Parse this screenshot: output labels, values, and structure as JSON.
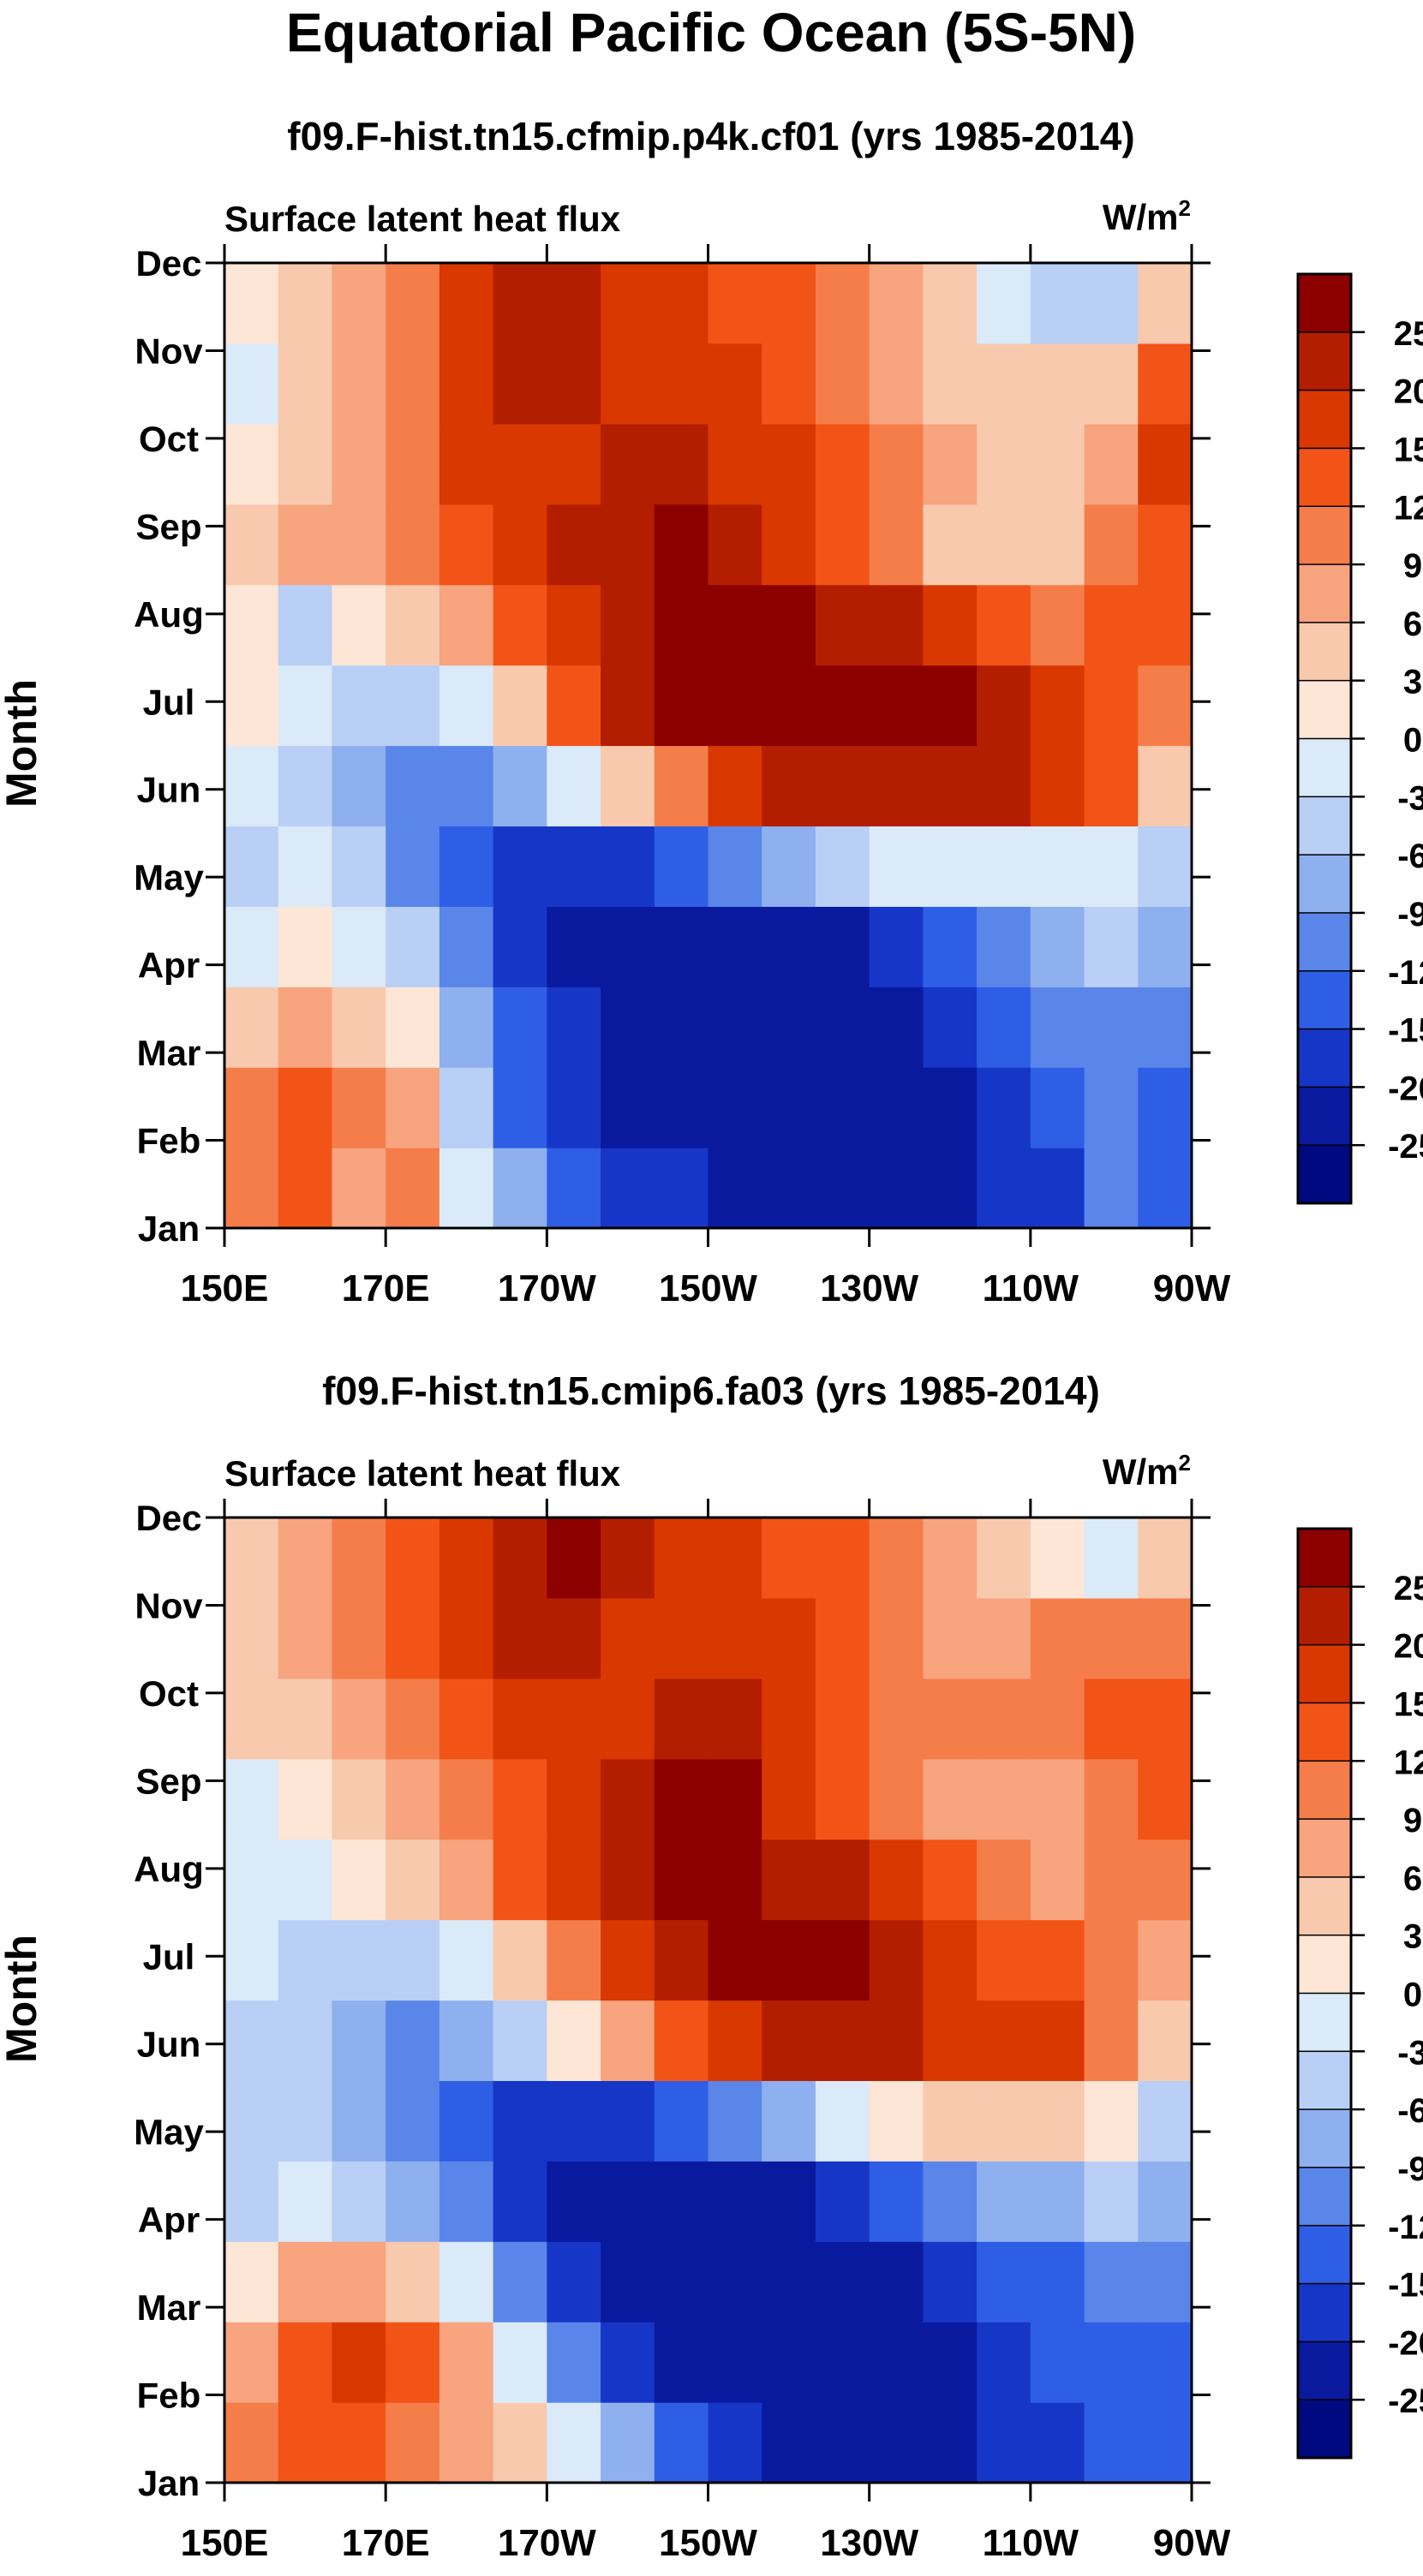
{
  "page": {
    "title": "Equatorial Pacific Ocean (5S-5N)"
  },
  "colorbar": {
    "levels": [
      "25",
      "20",
      "15",
      "12",
      "9",
      "6",
      "3",
      "0",
      "-3",
      "-6",
      "-9",
      "-12",
      "-15",
      "-20",
      "-25"
    ],
    "colors": [
      "#8c0000",
      "#b31e00",
      "#d93800",
      "#f25418",
      "#f57d4a",
      "#f7a47f",
      "#f9c9ae",
      "#fde6d6",
      "#dbeaf8",
      "#b9cff5",
      "#8fb0ef",
      "#5a86ea",
      "#2f5ee6",
      "#1636c8",
      "#0a1a9e",
      "#000a80"
    ]
  },
  "chart_data": [
    {
      "type": "heatmap",
      "title": "f09.F-hist.tn15.cfmip.p4k.cf01 (yrs 1985-2014)",
      "left_label": "Surface latent heat flux",
      "units": "W/m",
      "units_sup": "2",
      "ylabel": "Month",
      "x_ticks": [
        "150E",
        "170E",
        "170W",
        "150W",
        "130W",
        "110W",
        "90W"
      ],
      "y_ticks": [
        "Jan",
        "Feb",
        "Mar",
        "Apr",
        "May",
        "Jun",
        "Jul",
        "Aug",
        "Sep",
        "Oct",
        "Nov",
        "Dec"
      ],
      "xlim": [
        150,
        270
      ],
      "values": [
        [
          9,
          12,
          6,
          9,
          -3,
          -9,
          -15,
          -20,
          -20,
          -25,
          -25,
          -25,
          -25,
          -25,
          -20,
          -20,
          -12,
          -15
        ],
        [
          9,
          12,
          9,
          6,
          -6,
          -15,
          -20,
          -25,
          -25,
          -25,
          -25,
          -25,
          -25,
          -25,
          -20,
          -15,
          -12,
          -15
        ],
        [
          3,
          6,
          3,
          0,
          -9,
          -15,
          -20,
          -25,
          -25,
          -25,
          -25,
          -25,
          -25,
          -20,
          -15,
          -12,
          -12,
          -12
        ],
        [
          -3,
          0,
          -3,
          -6,
          -12,
          -20,
          -25,
          -25,
          -25,
          -25,
          -25,
          -25,
          -20,
          -15,
          -12,
          -9,
          -6,
          -9
        ],
        [
          -6,
          -3,
          -6,
          -12,
          -15,
          -20,
          -20,
          -20,
          -15,
          -12,
          -9,
          -6,
          -3,
          -3,
          -3,
          -3,
          -3,
          -6
        ],
        [
          -3,
          -6,
          -9,
          -12,
          -12,
          -9,
          -3,
          3,
          9,
          15,
          20,
          20,
          20,
          20,
          20,
          15,
          12,
          3
        ],
        [
          0,
          -3,
          -6,
          -6,
          -3,
          3,
          12,
          20,
          25,
          25,
          25,
          25,
          25,
          25,
          20,
          15,
          12,
          9
        ],
        [
          0,
          -6,
          0,
          3,
          6,
          12,
          15,
          20,
          25,
          25,
          25,
          20,
          20,
          15,
          12,
          9,
          12,
          12
        ],
        [
          3,
          6,
          6,
          9,
          12,
          15,
          20,
          20,
          25,
          20,
          15,
          12,
          9,
          3,
          3,
          3,
          9,
          12
        ],
        [
          0,
          3,
          6,
          9,
          15,
          15,
          15,
          20,
          20,
          15,
          15,
          12,
          9,
          6,
          3,
          3,
          6,
          15
        ],
        [
          -3,
          3,
          6,
          9,
          15,
          20,
          20,
          15,
          15,
          15,
          12,
          9,
          6,
          3,
          3,
          3,
          3,
          12
        ],
        [
          0,
          3,
          6,
          9,
          15,
          20,
          20,
          15,
          15,
          12,
          12,
          9,
          6,
          3,
          -3,
          -6,
          -6,
          3
        ]
      ]
    },
    {
      "type": "heatmap",
      "title": "f09.F-hist.tn15.cmip6.fa03 (yrs 1985-2014)",
      "left_label": "Surface latent heat flux",
      "units": "W/m",
      "units_sup": "2",
      "ylabel": "Month",
      "x_ticks": [
        "150E",
        "170E",
        "170W",
        "150W",
        "130W",
        "110W",
        "90W"
      ],
      "y_ticks": [
        "Jan",
        "Feb",
        "Mar",
        "Apr",
        "May",
        "Jun",
        "Jul",
        "Aug",
        "Sep",
        "Oct",
        "Nov",
        "Dec"
      ],
      "xlim": [
        150,
        270
      ],
      "values": [
        [
          9,
          12,
          12,
          9,
          6,
          3,
          -3,
          -9,
          -15,
          -20,
          -25,
          -25,
          -25,
          -25,
          -20,
          -20,
          -15,
          -15
        ],
        [
          6,
          12,
          15,
          12,
          6,
          -3,
          -12,
          -20,
          -25,
          -25,
          -25,
          -25,
          -25,
          -25,
          -20,
          -15,
          -15,
          -15
        ],
        [
          0,
          6,
          6,
          3,
          -3,
          -12,
          -20,
          -25,
          -25,
          -25,
          -25,
          -25,
          -25,
          -20,
          -15,
          -15,
          -12,
          -12
        ],
        [
          -6,
          -3,
          -6,
          -9,
          -12,
          -20,
          -25,
          -25,
          -25,
          -25,
          -25,
          -20,
          -15,
          -12,
          -9,
          -9,
          -6,
          -9
        ],
        [
          -6,
          -6,
          -9,
          -12,
          -15,
          -20,
          -20,
          -20,
          -15,
          -12,
          -9,
          -3,
          0,
          3,
          3,
          3,
          0,
          -6
        ],
        [
          -6,
          -6,
          -9,
          -12,
          -9,
          -6,
          0,
          6,
          12,
          15,
          20,
          20,
          20,
          15,
          15,
          15,
          9,
          3
        ],
        [
          -3,
          -6,
          -6,
          -6,
          -3,
          3,
          9,
          15,
          20,
          25,
          25,
          25,
          20,
          15,
          12,
          12,
          9,
          6
        ],
        [
          -3,
          -3,
          0,
          3,
          6,
          12,
          15,
          20,
          25,
          25,
          20,
          20,
          15,
          12,
          9,
          6,
          9,
          9
        ],
        [
          -3,
          0,
          3,
          6,
          9,
          12,
          15,
          20,
          25,
          25,
          15,
          12,
          9,
          6,
          6,
          6,
          9,
          12
        ],
        [
          3,
          3,
          6,
          9,
          12,
          15,
          15,
          15,
          20,
          20,
          15,
          12,
          9,
          9,
          9,
          9,
          12,
          12
        ],
        [
          3,
          6,
          9,
          12,
          15,
          20,
          20,
          15,
          15,
          15,
          15,
          12,
          9,
          6,
          6,
          9,
          9,
          9
        ],
        [
          3,
          6,
          9,
          12,
          15,
          20,
          25,
          20,
          15,
          15,
          12,
          12,
          9,
          6,
          3,
          0,
          -3,
          3
        ]
      ]
    }
  ]
}
